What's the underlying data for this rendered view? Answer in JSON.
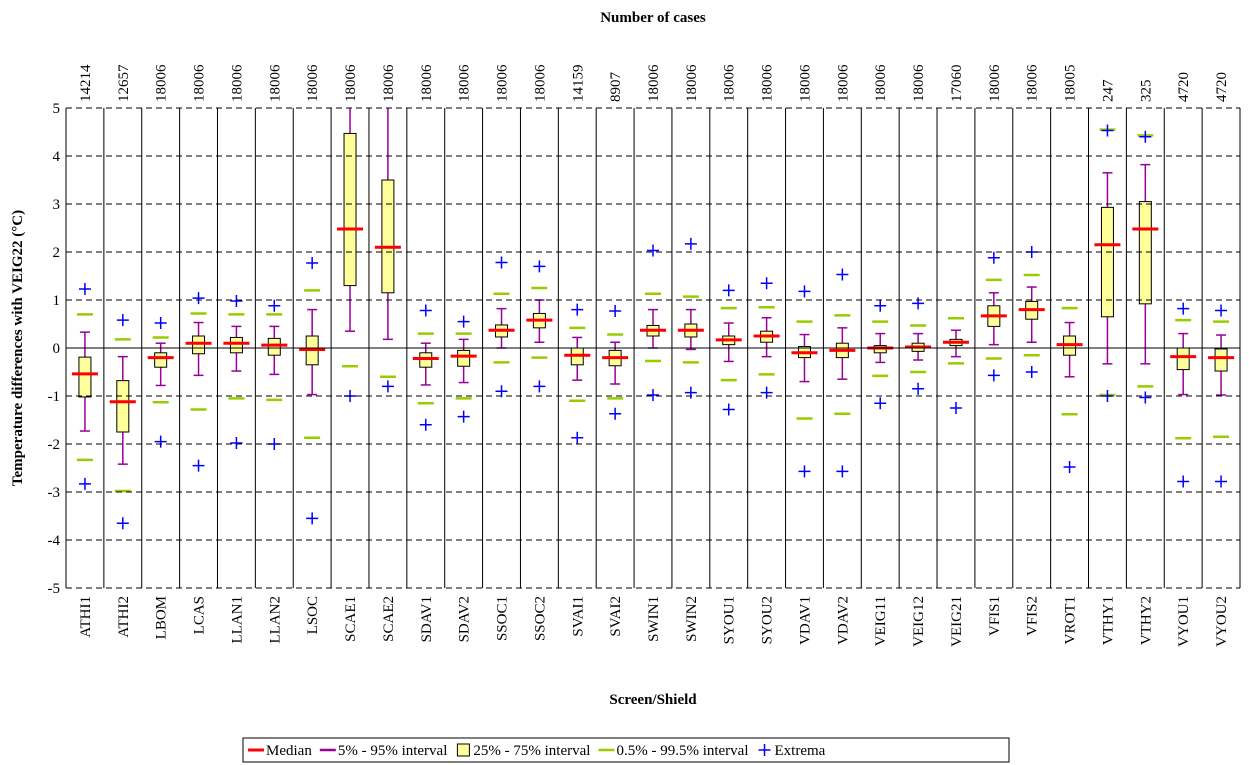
{
  "chart_data": {
    "type": "box",
    "title": "Number of cases",
    "xlabel": "Screen/Shield",
    "ylabel": "Temperature differences with VEIG22 (°C)",
    "categories": [
      "ATHI1",
      "ATHI2",
      "LBOM",
      "LCAS",
      "LLAN1",
      "LLAN2",
      "LSOC",
      "SCAE1",
      "SCAE2",
      "SDAV1",
      "SDAV2",
      "SSOC1",
      "SSOC2",
      "SVAI1",
      "SVAI2",
      "SWIN1",
      "SWIN2",
      "SYOU1",
      "SYOU2",
      "VDAV1",
      "VDAV2",
      "VEIG11",
      "VEIG12",
      "VEIG21",
      "VFIS1",
      "VFIS2",
      "VROT1",
      "VTHY1",
      "VTHY2",
      "VYOU1",
      "VYOU2"
    ],
    "counts": [
      14214,
      12657,
      18006,
      18006,
      18006,
      18006,
      18006,
      18006,
      18006,
      18006,
      18006,
      18006,
      18006,
      14159,
      8907,
      18006,
      18006,
      18006,
      18006,
      18006,
      18006,
      18006,
      18006,
      17060,
      18006,
      18006,
      18005,
      247,
      325,
      4720,
      4720
    ],
    "series": [
      {
        "name": "Median",
        "color": "#ff0000",
        "values": [
          -0.54,
          -1.12,
          -0.2,
          0.1,
          0.1,
          0.06,
          -0.03,
          2.48,
          2.1,
          -0.22,
          -0.17,
          0.37,
          0.58,
          -0.15,
          -0.2,
          0.37,
          0.37,
          0.17,
          0.25,
          -0.1,
          -0.05,
          0.0,
          0.02,
          0.12,
          0.67,
          0.8,
          0.07,
          2.15,
          2.48,
          -0.18,
          -0.2
        ]
      },
      {
        "name": "5% - 95% interval",
        "color": "#990099",
        "low": [
          -1.73,
          -2.42,
          -0.78,
          -0.57,
          -0.48,
          -0.55,
          -0.97,
          0.35,
          0.18,
          -0.77,
          -0.72,
          0.0,
          0.12,
          -0.67,
          -0.75,
          0.0,
          -0.03,
          -0.28,
          -0.18,
          -0.7,
          -0.65,
          -0.3,
          -0.25,
          -0.18,
          0.07,
          0.12,
          -0.6,
          -0.33,
          -0.33,
          -0.97,
          -0.98
        ],
        "high": [
          0.33,
          -0.18,
          0.1,
          0.53,
          0.45,
          0.45,
          0.8,
          5.5,
          5.5,
          0.1,
          0.18,
          0.82,
          1.0,
          0.22,
          0.12,
          0.8,
          0.8,
          0.52,
          0.63,
          0.28,
          0.42,
          0.3,
          0.3,
          0.37,
          1.15,
          1.27,
          0.53,
          3.65,
          3.82,
          0.3,
          0.27
        ]
      },
      {
        "name": "25% - 75% interval",
        "color": "#ffff99",
        "low": [
          -1.02,
          -1.75,
          -0.4,
          -0.12,
          -0.1,
          -0.15,
          -0.35,
          1.3,
          1.15,
          -0.4,
          -0.38,
          0.23,
          0.42,
          -0.35,
          -0.37,
          0.25,
          0.23,
          0.07,
          0.12,
          -0.2,
          -0.2,
          -0.1,
          -0.07,
          0.05,
          0.45,
          0.6,
          -0.15,
          0.65,
          0.92,
          -0.45,
          -0.48
        ],
        "high": [
          -0.19,
          -0.68,
          -0.1,
          0.25,
          0.22,
          0.2,
          0.25,
          4.47,
          3.5,
          -0.1,
          -0.05,
          0.48,
          0.72,
          0.0,
          -0.05,
          0.47,
          0.5,
          0.25,
          0.35,
          0.03,
          0.1,
          0.05,
          0.1,
          0.18,
          0.88,
          0.97,
          0.25,
          2.93,
          3.05,
          0.0,
          -0.02
        ]
      },
      {
        "name": "0.5% - 99.5% interval",
        "color": "#99cc00",
        "low": [
          -2.33,
          -2.98,
          -1.13,
          -1.28,
          -1.05,
          -1.08,
          -1.87,
          -0.38,
          -0.6,
          -1.15,
          -1.05,
          -0.3,
          -0.2,
          -1.1,
          -1.05,
          -0.27,
          -0.3,
          -0.67,
          -0.55,
          -1.47,
          -1.37,
          -0.58,
          -0.5,
          -0.32,
          -0.22,
          -0.15,
          -1.38,
          -0.98,
          -0.8,
          -1.88,
          -1.85
        ],
        "high": [
          0.7,
          0.18,
          0.22,
          0.72,
          0.7,
          0.7,
          1.2,
          null,
          null,
          0.3,
          0.3,
          1.13,
          1.25,
          0.42,
          0.28,
          1.13,
          1.07,
          0.83,
          0.85,
          0.55,
          0.68,
          0.55,
          0.47,
          0.62,
          1.42,
          1.52,
          0.83,
          4.55,
          4.43,
          0.58,
          0.55
        ]
      },
      {
        "name": "Extrema",
        "color": "#0000ff",
        "low": [
          -2.83,
          -3.65,
          -1.95,
          -2.45,
          -1.98,
          -2.0,
          -3.55,
          -1.0,
          -0.8,
          -1.6,
          -1.43,
          -0.9,
          -0.8,
          -1.87,
          -1.37,
          -0.98,
          -0.93,
          -1.28,
          -0.93,
          -2.57,
          -2.57,
          -1.15,
          -0.85,
          -1.25,
          -0.57,
          -0.5,
          -2.48,
          -1.0,
          -1.03,
          -2.78,
          -2.78
        ],
        "high": [
          1.23,
          0.58,
          0.52,
          1.04,
          0.98,
          0.88,
          1.77,
          null,
          null,
          0.78,
          0.55,
          1.78,
          1.7,
          0.8,
          0.77,
          2.03,
          2.17,
          1.2,
          1.35,
          1.18,
          1.53,
          0.88,
          0.93,
          null,
          1.88,
          2.0,
          null,
          4.53,
          4.4,
          0.82,
          0.78
        ]
      }
    ],
    "ylim": [
      -5,
      5
    ],
    "yticks": [
      -5,
      -4,
      -3,
      -2,
      -1,
      0,
      1,
      2,
      3,
      4,
      5
    ],
    "grid": true,
    "legend": "bottom"
  }
}
